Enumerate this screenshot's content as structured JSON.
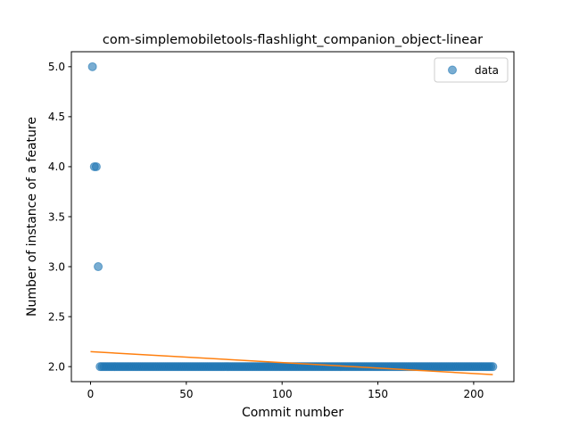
{
  "chart_data": {
    "type": "scatter",
    "title": "com-simplemobiletools-flashlight_companion_object-linear",
    "xlabel": "Commit number",
    "ylabel": "Number of instance of a feature",
    "xlim": [
      -10,
      221
    ],
    "ylim": [
      1.85,
      5.15
    ],
    "xticks": [
      0,
      50,
      100,
      150,
      200
    ],
    "yticks": [
      2.0,
      2.5,
      3.0,
      3.5,
      4.0,
      4.5,
      5.0
    ],
    "xtick_labels": [
      "0",
      "50",
      "100",
      "150",
      "200"
    ],
    "ytick_labels": [
      "2.0",
      "2.5",
      "3.0",
      "3.5",
      "4.0",
      "4.5",
      "5.0"
    ],
    "grid": false,
    "legend": {
      "position": "top-right",
      "entries": [
        "data"
      ]
    },
    "series": [
      {
        "name": "data",
        "kind": "scatter",
        "color": "#1f77b4",
        "points": [
          [
            1,
            5.0
          ],
          [
            2,
            4.0
          ],
          [
            3,
            4.0
          ],
          [
            4,
            3.0
          ],
          {
            "x_from": 5,
            "x_to": 210,
            "y": 2.0
          }
        ]
      },
      {
        "kind": "line",
        "color": "#ff7f0e",
        "x": [
          0,
          210
        ],
        "y": [
          2.15,
          1.92
        ]
      }
    ]
  }
}
